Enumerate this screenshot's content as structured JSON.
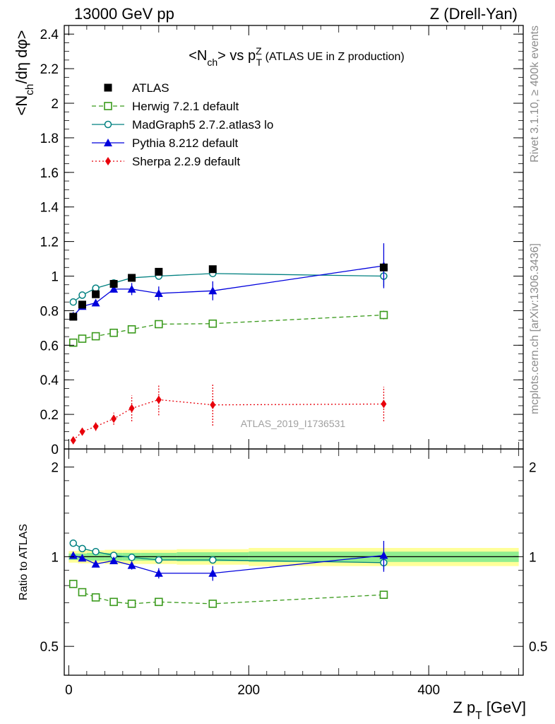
{
  "header": {
    "energy": "13000 GeV pp",
    "process": "Z (Drell-Yan)"
  },
  "side": {
    "rivet": "Rivet 3.1.10, ≥ 400k events",
    "mcplots": "mcplots.cern.ch [arXiv:1306.3436]"
  },
  "chart_data": {
    "type": "line",
    "title": "<N_ch> vs p_T^Z (ATLAS UE in Z production)",
    "ylabel": "<N_ch/dη dφ>",
    "ratio_ylabel": "Ratio to ATLAS",
    "xlabel": "Z p_T [GeV]",
    "watermark": "ATLAS_2019_I1736531",
    "xlim": [
      -5,
      505
    ],
    "ylim": [
      0,
      2.45
    ],
    "ratio_ylim": [
      0.4,
      2.3
    ],
    "ratio_log": true,
    "xticks": [
      0,
      200,
      400
    ],
    "yticks": [
      "0",
      "0.2",
      "0.4",
      "0.6",
      "0.8",
      "1",
      "1.2",
      "1.4",
      "1.6",
      "1.8",
      "2",
      "2.2",
      "2.4"
    ],
    "ratio_yticks": [
      "0.5",
      "1",
      "2"
    ],
    "legend_position": "top-left",
    "x": [
      5,
      15,
      30,
      50,
      70,
      100,
      160,
      350
    ],
    "reference": {
      "name": "ATLAS",
      "values": [
        0.765,
        0.835,
        0.895,
        0.955,
        0.99,
        1.025,
        1.04,
        1.05
      ],
      "band_inner": [
        {
          "from": 0,
          "to": 10,
          "lo": 0.975,
          "hi": 1.025
        },
        {
          "from": 10,
          "to": 20,
          "lo": 0.975,
          "hi": 1.025
        },
        {
          "from": 20,
          "to": 40,
          "lo": 0.97,
          "hi": 1.03
        },
        {
          "from": 40,
          "to": 60,
          "lo": 0.97,
          "hi": 1.03
        },
        {
          "from": 60,
          "to": 80,
          "lo": 0.97,
          "hi": 1.03
        },
        {
          "from": 80,
          "to": 120,
          "lo": 0.97,
          "hi": 1.03
        },
        {
          "from": 120,
          "to": 200,
          "lo": 0.965,
          "hi": 1.035
        },
        {
          "from": 200,
          "to": 500,
          "lo": 0.96,
          "hi": 1.04
        }
      ],
      "band_outer": [
        {
          "from": 0,
          "to": 10,
          "lo": 0.955,
          "hi": 1.045
        },
        {
          "from": 10,
          "to": 20,
          "lo": 0.95,
          "hi": 1.05
        },
        {
          "from": 20,
          "to": 40,
          "lo": 0.95,
          "hi": 1.05
        },
        {
          "from": 40,
          "to": 60,
          "lo": 0.945,
          "hi": 1.055
        },
        {
          "from": 60,
          "to": 80,
          "lo": 0.945,
          "hi": 1.055
        },
        {
          "from": 80,
          "to": 120,
          "lo": 0.945,
          "hi": 1.055
        },
        {
          "from": 120,
          "to": 200,
          "lo": 0.94,
          "hi": 1.06
        },
        {
          "from": 200,
          "to": 500,
          "lo": 0.93,
          "hi": 1.07
        }
      ]
    },
    "series": [
      {
        "name": "Herwig 7.2.1 default",
        "color": "#3a9a1c",
        "marker": "open-square",
        "line": "dashed",
        "values": [
          0.615,
          0.638,
          0.652,
          0.672,
          0.692,
          0.722,
          0.725,
          0.775
        ],
        "errors": [
          0.01,
          0.01,
          0.01,
          0.01,
          0.01,
          0.012,
          0.012,
          0.025
        ],
        "ratio": [
          0.81,
          0.76,
          0.73,
          0.705,
          0.695,
          0.705,
          0.695,
          0.745
        ],
        "ratio_errors": [
          0.01,
          0.01,
          0.01,
          0.01,
          0.01,
          0.01,
          0.01,
          0.02
        ]
      },
      {
        "name": "MadGraph5 2.7.2.atlas3 lo",
        "color": "#008080",
        "marker": "open-circle",
        "line": "solid",
        "values": [
          0.85,
          0.89,
          0.93,
          0.96,
          0.99,
          1.0,
          1.015,
          1.0
        ],
        "errors": [
          0.005,
          0.005,
          0.005,
          0.005,
          0.005,
          0.006,
          0.006,
          0.06
        ],
        "ratio": [
          1.11,
          1.065,
          1.04,
          1.01,
          0.995,
          0.975,
          0.975,
          0.955
        ],
        "ratio_errors": [
          0.005,
          0.005,
          0.005,
          0.005,
          0.005,
          0.005,
          0.005,
          0.05
        ]
      },
      {
        "name": "Pythia 8.212 default",
        "color": "#0000dd",
        "marker": "filled-triangle",
        "line": "solid",
        "values": [
          0.77,
          0.825,
          0.845,
          0.925,
          0.925,
          0.9,
          0.915,
          1.06
        ],
        "errors": [
          0.012,
          0.012,
          0.015,
          0.02,
          0.035,
          0.04,
          0.055,
          0.13
        ],
        "ratio": [
          1.01,
          0.99,
          0.945,
          0.97,
          0.935,
          0.88,
          0.88,
          1.01
        ],
        "ratio_errors": [
          0.012,
          0.012,
          0.015,
          0.02,
          0.03,
          0.035,
          0.05,
          0.12
        ]
      },
      {
        "name": "Sherpa 2.2.9 default",
        "color": "#e8000b",
        "marker": "filled-diamond",
        "line": "dotted",
        "values": [
          0.05,
          0.1,
          0.13,
          0.175,
          0.235,
          0.285,
          0.255,
          0.26
        ],
        "errors": [
          0.015,
          0.02,
          0.025,
          0.035,
          0.075,
          0.09,
          0.12,
          0.1
        ],
        "ratio": null
      }
    ]
  }
}
